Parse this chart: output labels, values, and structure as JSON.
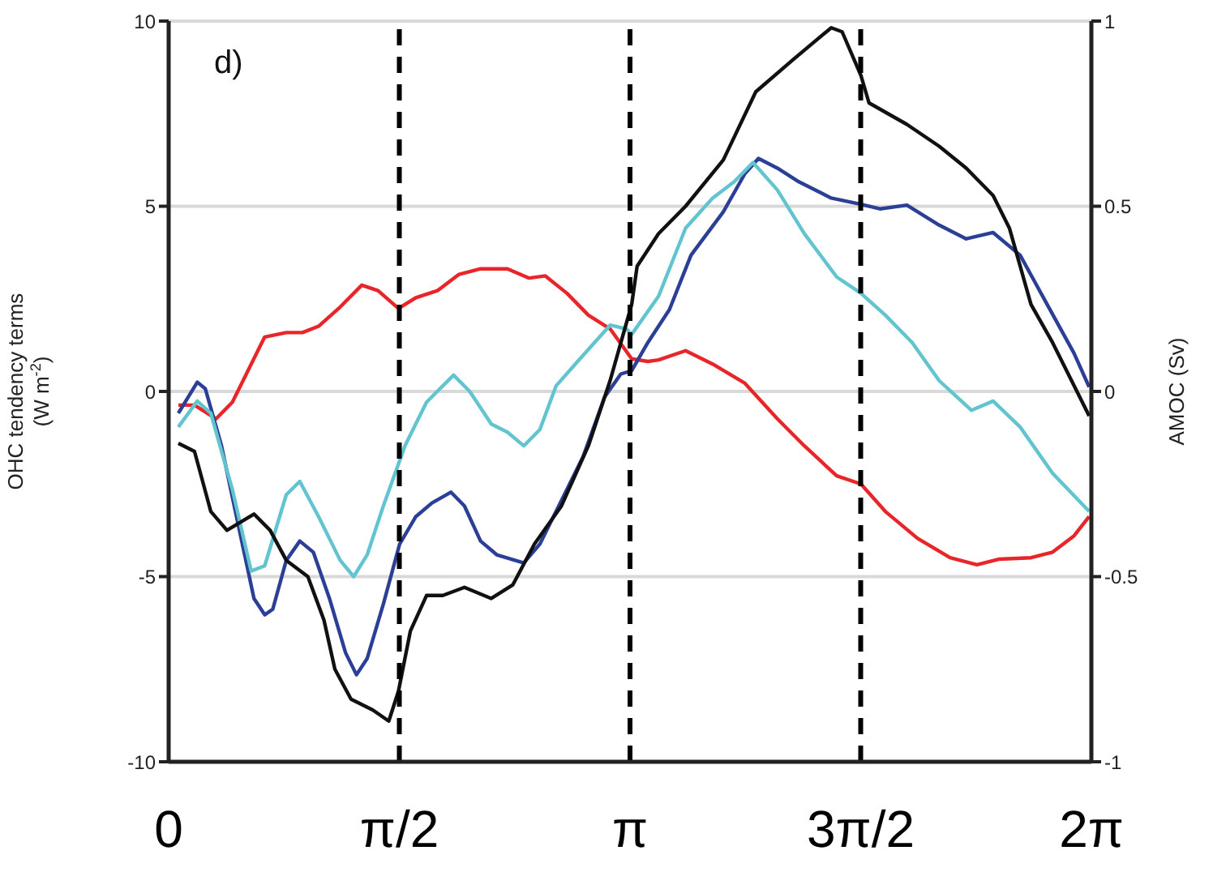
{
  "chart_data": {
    "type": "line",
    "ylabel": "OHC  tendency terms\n(W m$^{-2}$)",
    "y2label": "AMOC (Sv)",
    "annotations": [
      "d)"
    ],
    "xlim": [
      0,
      6.2832
    ],
    "xticks": [
      {
        "value": 0,
        "label": "0"
      },
      {
        "value": 1.5708,
        "label": "π/2"
      },
      {
        "value": 3.1416,
        "label": "π"
      },
      {
        "value": 4.7124,
        "label": "3π/2"
      },
      {
        "value": 6.2832,
        "label": "2π"
      }
    ],
    "ylim": [
      -10,
      10
    ],
    "yticks": [
      -10,
      -5,
      0,
      5,
      10
    ],
    "y2lim": [
      -1,
      1
    ],
    "y2ticks": [
      -1,
      -0.5,
      0,
      0.5,
      1
    ],
    "grid": "y",
    "marker": "none",
    "line_style": "solid",
    "ref_lines": [
      {
        "axis": "x",
        "value": 1.5708,
        "color": "#000000",
        "line_style": "dashed"
      },
      {
        "axis": "x",
        "value": 3.1416,
        "color": "#000000",
        "line_style": "dashed"
      },
      {
        "axis": "x",
        "value": 4.7124,
        "color": "#000000",
        "line_style": "dashed"
      }
    ],
    "series": [
      {
        "color": "#e8262a",
        "x": [
          0.066,
          0.176,
          0.323,
          0.434,
          0.544,
          0.654,
          0.801,
          0.911,
          1.021,
          1.168,
          1.315,
          1.426,
          1.565,
          1.683,
          1.83,
          1.977,
          2.124,
          2.307,
          2.455,
          2.565,
          2.712,
          2.858,
          3.006,
          3.153,
          3.263,
          3.336,
          3.52,
          3.704,
          3.924,
          4.145,
          4.329,
          4.549,
          4.714,
          4.88,
          5.1,
          5.321,
          5.504,
          5.651,
          5.872,
          6.019,
          6.165,
          6.268
        ],
        "values": [
          -0.37,
          -0.37,
          -0.74,
          -0.29,
          0.59,
          1.47,
          1.59,
          1.59,
          1.76,
          2.28,
          2.87,
          2.72,
          2.24,
          2.53,
          2.72,
          3.16,
          3.31,
          3.31,
          3.06,
          3.12,
          2.65,
          2.06,
          1.69,
          0.88,
          0.81,
          0.85,
          1.1,
          0.74,
          0.22,
          -0.74,
          -1.47,
          -2.28,
          -2.5,
          -3.24,
          -3.97,
          -4.49,
          -4.68,
          -4.53,
          -4.49,
          -4.34,
          -3.9,
          -3.38
        ]
      },
      {
        "color": "#2b3f96",
        "x": [
          0.066,
          0.195,
          0.25,
          0.36,
          0.47,
          0.581,
          0.654,
          0.709,
          0.801,
          0.893,
          0.985,
          1.095,
          1.205,
          1.279,
          1.352,
          1.462,
          1.573,
          1.683,
          1.793,
          1.922,
          2.014,
          2.124,
          2.234,
          2.418,
          2.528,
          2.675,
          2.822,
          2.969,
          3.079,
          3.153,
          3.263,
          3.41,
          3.557,
          3.777,
          3.924,
          4.016,
          4.145,
          4.291,
          4.512,
          4.696,
          4.843,
          5.027,
          5.247,
          5.431,
          5.614,
          5.798,
          5.982,
          6.165,
          6.268
        ],
        "values": [
          -0.59,
          0.25,
          0.07,
          -1.47,
          -3.53,
          -5.59,
          -6.03,
          -5.88,
          -4.56,
          -4.04,
          -4.34,
          -5.59,
          -7.06,
          -7.65,
          -7.21,
          -5.74,
          -4.12,
          -3.38,
          -3.01,
          -2.72,
          -3.09,
          -4.04,
          -4.41,
          -4.63,
          -4.12,
          -2.94,
          -1.76,
          -0.15,
          0.47,
          0.56,
          1.32,
          2.21,
          3.68,
          4.85,
          5.88,
          6.29,
          6.03,
          5.66,
          5.22,
          5.07,
          4.93,
          5.03,
          4.49,
          4.12,
          4.29,
          3.68,
          2.35,
          1.03,
          0.12
        ]
      },
      {
        "color": "#62c4cf",
        "x": [
          0.066,
          0.195,
          0.287,
          0.434,
          0.562,
          0.654,
          0.801,
          0.893,
          1.021,
          1.168,
          1.26,
          1.352,
          1.462,
          1.609,
          1.756,
          1.94,
          2.05,
          2.197,
          2.307,
          2.418,
          2.528,
          2.638,
          2.785,
          3.006,
          3.116,
          3.153,
          3.336,
          3.52,
          3.704,
          3.851,
          3.979,
          4.145,
          4.329,
          4.549,
          4.714,
          4.88,
          5.063,
          5.247,
          5.467,
          5.614,
          5.798,
          6.019,
          6.268
        ],
        "values": [
          -0.96,
          -0.26,
          -0.59,
          -2.65,
          -4.85,
          -4.71,
          -2.79,
          -2.43,
          -3.38,
          -4.56,
          -5,
          -4.41,
          -3.09,
          -1.47,
          -0.29,
          0.44,
          0,
          -0.88,
          -1.1,
          -1.47,
          -1.03,
          0.15,
          0.81,
          1.79,
          1.69,
          1.54,
          2.57,
          4.41,
          5.22,
          5.66,
          6.18,
          5.44,
          4.26,
          3.09,
          2.65,
          2.06,
          1.32,
          0.29,
          -0.51,
          -0.26,
          -0.96,
          -2.21,
          -3.24
        ]
      },
      {
        "color": "#111111",
        "axis": "y2",
        "x": [
          0.066,
          0.176,
          0.287,
          0.397,
          0.581,
          0.691,
          0.801,
          0.948,
          1.058,
          1.132,
          1.242,
          1.389,
          1.499,
          1.565,
          1.646,
          1.756,
          1.867,
          2.014,
          2.197,
          2.344,
          2.491,
          2.675,
          2.858,
          3.006,
          3.153,
          3.19,
          3.336,
          3.52,
          3.777,
          3.998,
          4.255,
          4.512,
          4.586,
          4.714,
          4.769,
          5.027,
          5.247,
          5.431,
          5.614,
          5.725,
          5.872,
          6.019,
          6.268
        ],
        "values": [
          -0.14,
          -0.162,
          -0.324,
          -0.375,
          -0.331,
          -0.375,
          -0.456,
          -0.5,
          -0.618,
          -0.75,
          -0.831,
          -0.86,
          -0.89,
          -0.809,
          -0.647,
          -0.551,
          -0.551,
          -0.529,
          -0.559,
          -0.522,
          -0.412,
          -0.309,
          -0.147,
          0.029,
          0.235,
          0.338,
          0.426,
          0.5,
          0.625,
          0.809,
          0.897,
          0.982,
          0.971,
          0.853,
          0.779,
          0.721,
          0.662,
          0.603,
          0.529,
          0.441,
          0.235,
          0.132,
          -0.066
        ]
      }
    ]
  }
}
